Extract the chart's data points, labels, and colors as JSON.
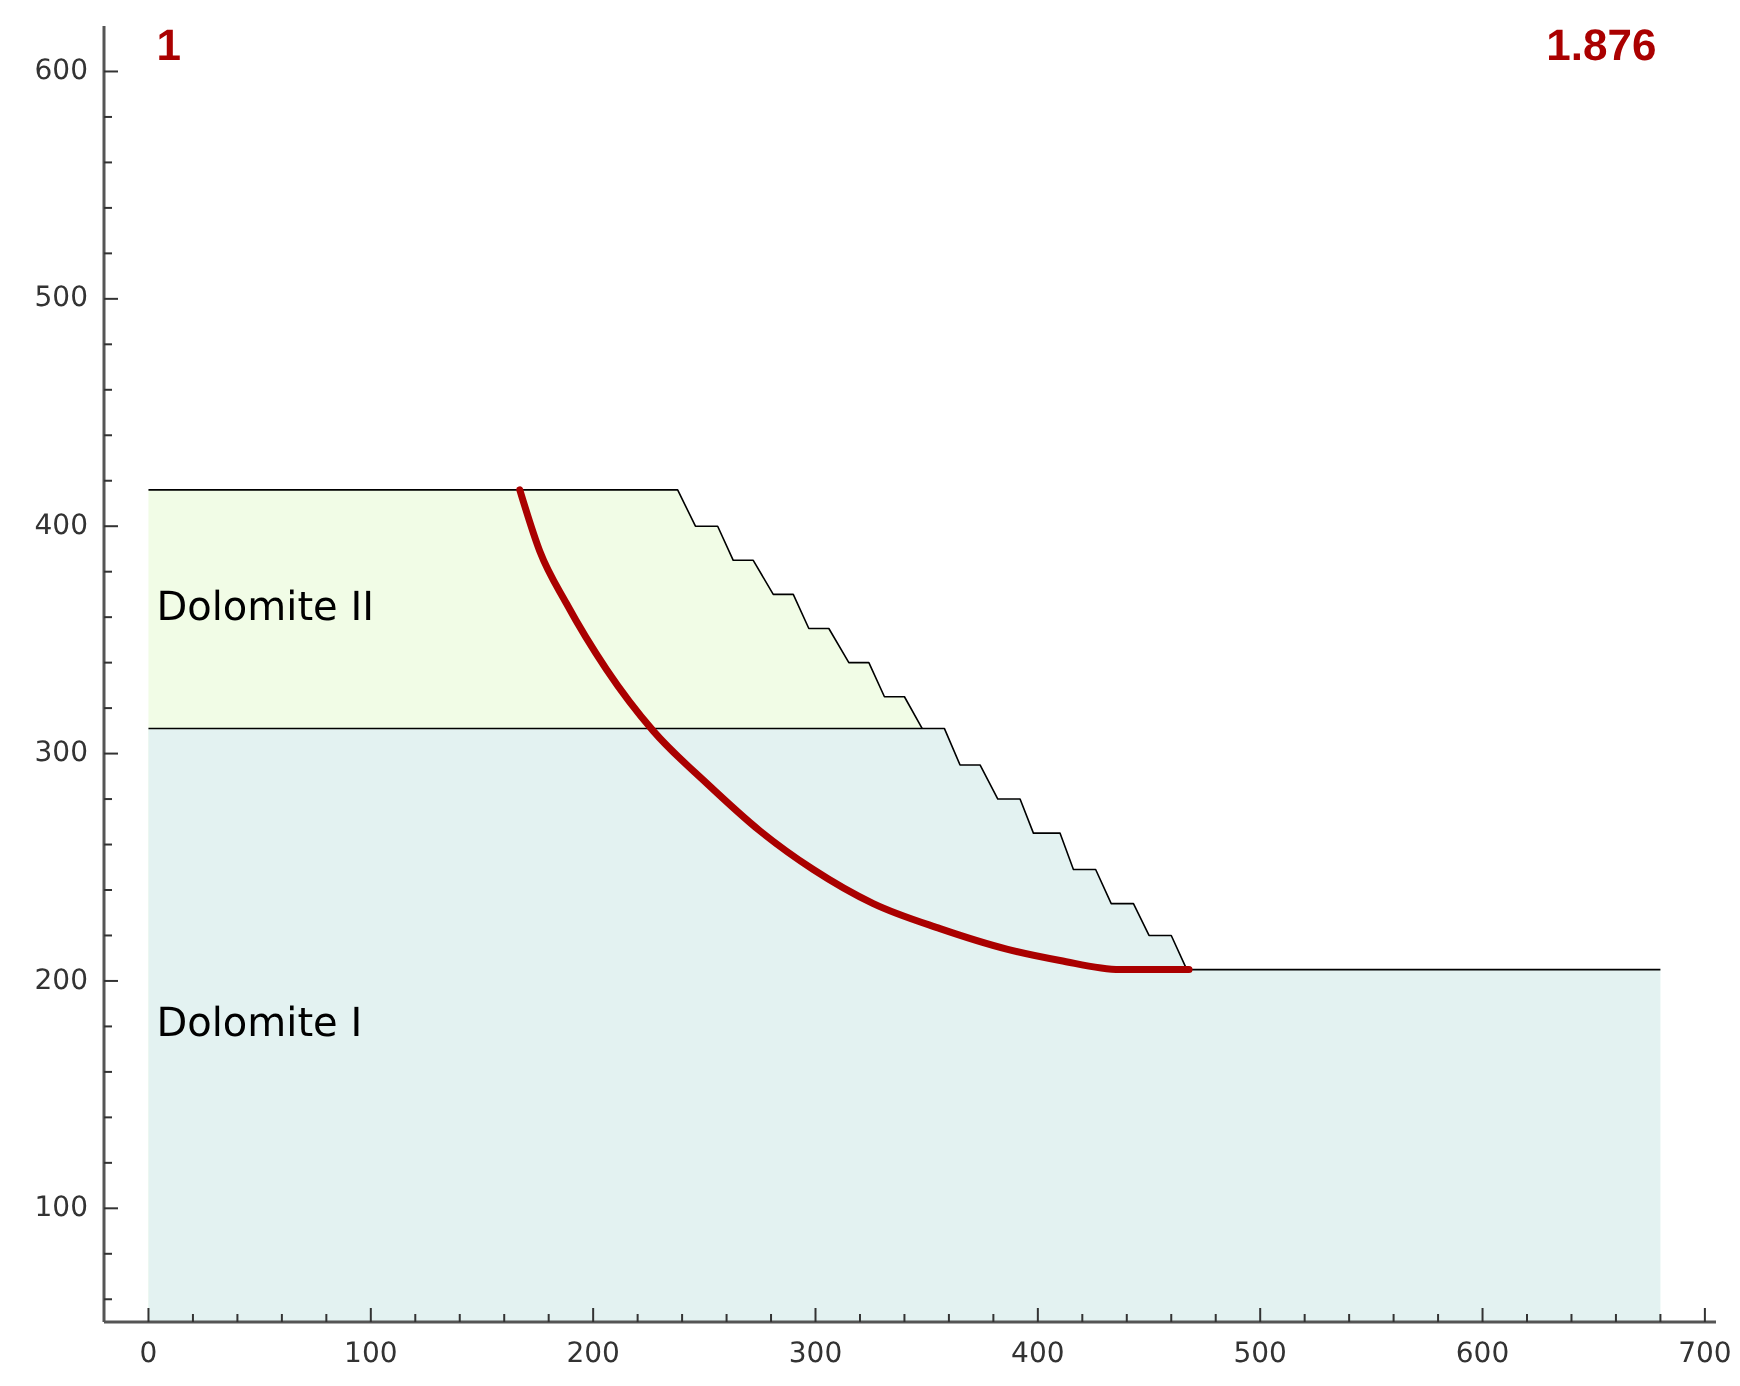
{
  "chart_data": {
    "type": "area",
    "annotations": [
      "1",
      "1.876"
    ],
    "xlim": [
      -20,
      705
    ],
    "ylim": [
      50,
      620
    ],
    "xticks": [
      0,
      {
        "value": 20,
        "label": null
      },
      {
        "value": 40,
        "label": null
      },
      {
        "value": 60,
        "label": null
      },
      {
        "value": 80,
        "label": null
      },
      100,
      {
        "value": 120,
        "label": null
      },
      {
        "value": 140,
        "label": null
      },
      {
        "value": 160,
        "label": null
      },
      {
        "value": 180,
        "label": null
      },
      200,
      {
        "value": 220,
        "label": null
      },
      {
        "value": 240,
        "label": null
      },
      {
        "value": 260,
        "label": null
      },
      {
        "value": 280,
        "label": null
      },
      300,
      {
        "value": 320,
        "label": null
      },
      {
        "value": 340,
        "label": null
      },
      {
        "value": 360,
        "label": null
      },
      {
        "value": 380,
        "label": null
      },
      400,
      {
        "value": 420,
        "label": null
      },
      {
        "value": 440,
        "label": null
      },
      {
        "value": 460,
        "label": null
      },
      {
        "value": 480,
        "label": null
      },
      500,
      {
        "value": 520,
        "label": null
      },
      {
        "value": 540,
        "label": null
      },
      {
        "value": 560,
        "label": null
      },
      {
        "value": 580,
        "label": null
      },
      600,
      {
        "value": 620,
        "label": null
      },
      {
        "value": 640,
        "label": null
      },
      {
        "value": 660,
        "label": null
      },
      {
        "value": 680,
        "label": null
      },
      700
    ],
    "yticks": [
      {
        "value": 60,
        "label": null
      },
      {
        "value": 80,
        "label": null
      },
      100,
      {
        "value": 120,
        "label": null
      },
      {
        "value": 140,
        "label": null
      },
      {
        "value": 160,
        "label": null
      },
      {
        "value": 180,
        "label": null
      },
      200,
      {
        "value": 220,
        "label": null
      },
      {
        "value": 240,
        "label": null
      },
      {
        "value": 260,
        "label": null
      },
      {
        "value": 280,
        "label": null
      },
      300,
      {
        "value": 320,
        "label": null
      },
      {
        "value": 340,
        "label": null
      },
      {
        "value": 360,
        "label": null
      },
      {
        "value": 380,
        "label": null
      },
      400,
      {
        "value": 420,
        "label": null
      },
      {
        "value": 440,
        "label": null
      },
      {
        "value": 460,
        "label": null
      },
      {
        "value": 480,
        "label": null
      },
      500,
      {
        "value": 520,
        "label": null
      },
      {
        "value": 540,
        "label": null
      },
      {
        "value": 560,
        "label": null
      },
      {
        "value": 580,
        "label": null
      },
      600
    ],
    "grid": false,
    "legend": false,
    "series": [
      {
        "name": "Dolomite II",
        "color": "#f1fce6",
        "x": [
          0,
          238,
          246,
          256,
          263,
          272,
          281,
          290,
          297,
          306,
          315,
          324,
          331,
          340,
          348
        ],
        "values": [
          416,
          416,
          400,
          400,
          385,
          385,
          370,
          370,
          355,
          355,
          340,
          340,
          325,
          325,
          311
        ]
      },
      {
        "name": "Dolomite I",
        "color": "#e3f2f1",
        "x": [
          0,
          348,
          358,
          365,
          374,
          382,
          392,
          398,
          410,
          416,
          426,
          433,
          443,
          450,
          460,
          467,
          680
        ],
        "values": [
          311,
          311,
          311,
          295,
          295,
          280,
          280,
          265,
          265,
          249,
          249,
          234,
          234,
          220,
          220,
          205,
          205
        ]
      },
      {
        "type": "line",
        "color": "#aa0000",
        "x": [
          167,
          176,
          188,
          206,
          227,
          251,
          275,
          299,
          326,
          356,
          386,
          410,
          437,
          468
        ],
        "values": [
          416,
          389,
          366,
          337,
          310,
          287,
          266,
          249,
          234,
          223,
          214,
          209,
          205,
          205
        ]
      }
    ]
  }
}
